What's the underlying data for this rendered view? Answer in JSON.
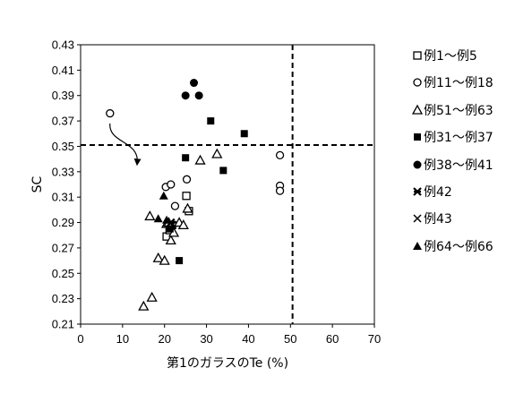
{
  "chart_data": {
    "type": "scatter",
    "xlabel": "第1のガラスのTe (%)",
    "ylabel": "SC",
    "xlim": [
      0,
      70
    ],
    "ylim": [
      0.21,
      0.43
    ],
    "xticks": [
      "0",
      "10",
      "20",
      "30",
      "40",
      "50",
      "60",
      "70"
    ],
    "yticks": [
      "0.21",
      "0.23",
      "0.25",
      "0.27",
      "0.29",
      "0.31",
      "0.33",
      "0.35",
      "0.37",
      "0.39",
      "0.41",
      "0.43"
    ],
    "grid": false,
    "reference_lines": {
      "x": 50.5,
      "y": 0.351,
      "style": "dashed"
    },
    "annotation": {
      "type": "curved-arrow",
      "from": [
        7,
        0.368
      ],
      "to": [
        13.5,
        0.336
      ]
    },
    "legend_position": "right",
    "series": [
      {
        "name": "例1～例5",
        "marker": "square-open",
        "points": [
          [
            20.5,
            0.279
          ],
          [
            21.2,
            0.284
          ],
          [
            21.8,
            0.288
          ],
          [
            25.2,
            0.311
          ],
          [
            25.8,
            0.299
          ]
        ]
      },
      {
        "name": "例11～例18",
        "marker": "circle-open",
        "points": [
          [
            7,
            0.376
          ],
          [
            20.3,
            0.318
          ],
          [
            21.5,
            0.32
          ],
          [
            22.5,
            0.303
          ],
          [
            25.3,
            0.324
          ],
          [
            47.5,
            0.343
          ],
          [
            47.5,
            0.319
          ],
          [
            47.5,
            0.315
          ]
        ]
      },
      {
        "name": "例51～例63",
        "marker": "triangle-open",
        "points": [
          [
            15,
            0.224
          ],
          [
            17,
            0.231
          ],
          [
            16.5,
            0.295
          ],
          [
            18.5,
            0.262
          ],
          [
            20,
            0.26
          ],
          [
            20.5,
            0.289
          ],
          [
            21,
            0.29
          ],
          [
            21.5,
            0.276
          ],
          [
            22.2,
            0.282
          ],
          [
            23.5,
            0.29
          ],
          [
            24.5,
            0.288
          ],
          [
            25.5,
            0.301
          ],
          [
            28.5,
            0.339
          ],
          [
            32.5,
            0.344
          ]
        ]
      },
      {
        "name": "例31～例37",
        "marker": "square-filled",
        "points": [
          [
            23.5,
            0.26
          ],
          [
            25,
            0.341
          ],
          [
            31,
            0.37
          ],
          [
            34,
            0.331
          ],
          [
            39,
            0.36
          ],
          [
            21.3,
            0.285
          ]
        ]
      },
      {
        "name": "例38～例41",
        "marker": "circle-filled",
        "points": [
          [
            25,
            0.39
          ],
          [
            27,
            0.4
          ],
          [
            28.2,
            0.39
          ]
        ]
      },
      {
        "name": "例42",
        "marker": "asterisk",
        "points": [
          [
            21.5,
            0.29
          ]
        ]
      },
      {
        "name": "例43",
        "marker": "cross",
        "points": [
          [
            21.8,
            0.288
          ]
        ]
      },
      {
        "name": "例64～例66",
        "marker": "triangle-filled",
        "points": [
          [
            18.5,
            0.293
          ],
          [
            19.8,
            0.311
          ],
          [
            20.5,
            0.292
          ]
        ]
      }
    ]
  }
}
